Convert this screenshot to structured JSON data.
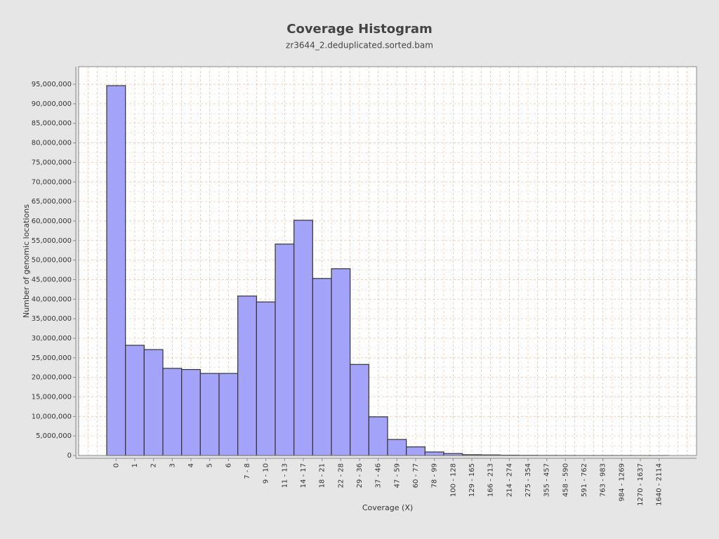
{
  "chart_data": {
    "type": "bar",
    "title": "Coverage Histogram",
    "subtitle": "zr3644_2.deduplicated.sorted.bam",
    "x_label": "Coverage (X)",
    "y_label": "Number of genomic locations",
    "categories": [
      "0",
      "1",
      "2",
      "3",
      "4",
      "5",
      "6",
      "7 - 8",
      "9 - 10",
      "11 - 13",
      "14 - 17",
      "18 - 21",
      "22 - 28",
      "29 - 36",
      "37 - 46",
      "47 - 59",
      "60 - 77",
      "78 - 99",
      "100 - 128",
      "129 - 165",
      "166 - 213",
      "214 - 274",
      "275 - 354",
      "355 - 457",
      "458 - 590",
      "591 - 762",
      "763 - 983",
      "984 - 1269",
      "1270 - 1637",
      "1640 - 2114"
    ],
    "values": [
      94650000,
      28200000,
      27100000,
      22300000,
      22000000,
      21000000,
      21000000,
      40800000,
      39300000,
      54100000,
      60200000,
      45300000,
      47800000,
      23300000,
      9900000,
      4100000,
      2200000,
      900000,
      500000,
      200000,
      150000,
      80000,
      50000,
      30000,
      20000,
      10000,
      8000,
      5000,
      3000,
      2000
    ],
    "color": "#a3a3fa",
    "ylim": [
      0,
      99500000
    ],
    "yticks": [
      0,
      {
        "value": 5000000,
        "label": "5,000,000"
      },
      {
        "value": 10000000,
        "label": "10,000,000"
      },
      {
        "value": 15000000,
        "label": "15,000,000"
      },
      {
        "value": 20000000,
        "label": "20,000,000"
      },
      {
        "value": 25000000,
        "label": "25,000,000"
      },
      {
        "value": 30000000,
        "label": "30,000,000"
      },
      {
        "value": 35000000,
        "label": "35,000,000"
      },
      {
        "value": 40000000,
        "label": "40,000,000"
      },
      {
        "value": 45000000,
        "label": "45,000,000"
      },
      {
        "value": 50000000,
        "label": "50,000,000"
      },
      {
        "value": 55000000,
        "label": "55,000,000"
      },
      {
        "value": 60000000,
        "label": "60,000,000"
      },
      {
        "value": 65000000,
        "label": "65,000,000"
      },
      {
        "value": 70000000,
        "label": "70,000,000"
      },
      {
        "value": 75000000,
        "label": "75,000,000"
      },
      {
        "value": 80000000,
        "label": "80,000,000"
      },
      {
        "value": 85000000,
        "label": "85,000,000"
      },
      {
        "value": 90000000,
        "label": "90,000,000"
      },
      {
        "value": 95000000,
        "label": "95,000,000"
      }
    ],
    "grid": true
  }
}
